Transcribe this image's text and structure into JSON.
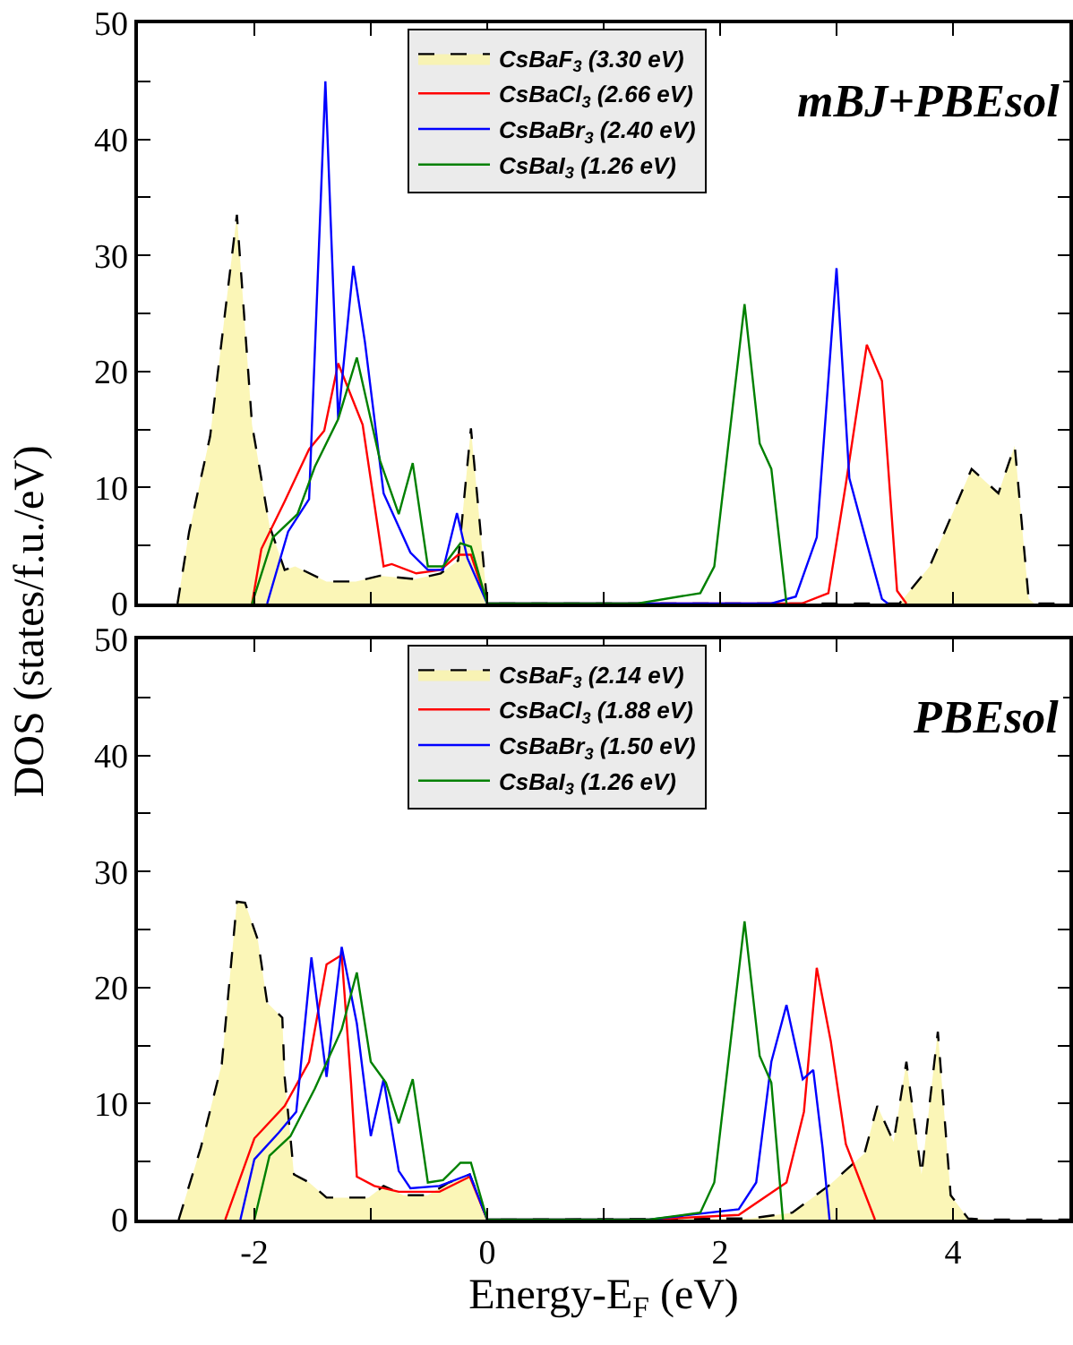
{
  "chart_data": [
    {
      "type": "line",
      "ylabel": "DOS (states/f.u./eV)",
      "annotations": [
        "mBJ+PBEsol"
      ],
      "xlim": [
        -3,
        5
      ],
      "ylim": [
        0,
        50
      ],
      "tick_labels": "y",
      "legend": "top",
      "line_style": "solid",
      "marker": "none",
      "xticks": [
        {
          "value": -2,
          "label": null
        },
        {
          "value": -1,
          "label": null
        },
        {
          "value": 0,
          "label": null
        },
        {
          "value": 1,
          "label": null
        },
        {
          "value": 2,
          "label": null
        },
        {
          "value": 3,
          "label": null
        },
        {
          "value": 4,
          "label": null
        }
      ],
      "yticks": [
        0,
        {
          "value": 5,
          "label": null
        },
        10,
        {
          "value": 15,
          "label": null
        },
        20,
        {
          "value": 25,
          "label": null
        },
        30,
        {
          "value": 35,
          "label": null
        },
        40,
        {
          "value": 45,
          "label": null
        },
        50
      ],
      "series": [
        {
          "name": "CsBaF$_{3}$ (3.30 eV)",
          "type": "area",
          "line_style": "dashed",
          "color": "#000000",
          "x": [
            -2.66,
            -2.56,
            -2.38,
            -2.15,
            -2.02,
            -1.87,
            -1.74,
            -1.65,
            -1.38,
            -1.13,
            -0.92,
            -0.62,
            -0.4,
            -0.25,
            -0.14,
            0,
            3.54,
            3.8,
            4.16,
            4.39,
            4.53,
            4.65,
            4.7,
            5
          ],
          "values": [
            0,
            6.2,
            14.4,
            33.5,
            15.4,
            6.7,
            2.9,
            3.2,
            1.9,
            1.9,
            2.4,
            2.1,
            2.6,
            3.7,
            15.1,
            0,
            0,
            3.2,
            11.6,
            9.5,
            13.6,
            0.4,
            0,
            0
          ]
        },
        {
          "name": "CsBaCl$_{3}$ (2.66 eV)",
          "color": "#ff0000",
          "x": [
            -2.02,
            -1.94,
            -1.74,
            -1.53,
            -1.4,
            -1.28,
            -1.07,
            -0.89,
            -0.82,
            -0.61,
            -0.4,
            -0.25,
            -0.14,
            0,
            2.7,
            2.93,
            3.08,
            3.26,
            3.39,
            3.52,
            3.6
          ],
          "values": [
            0,
            4.7,
            8.8,
            13.3,
            14.9,
            20.7,
            15.4,
            3.2,
            3.4,
            2.6,
            2.9,
            4.2,
            4.2,
            0,
            0,
            0.9,
            10.3,
            22.3,
            19.2,
            1.1,
            0
          ]
        },
        {
          "name": "CsBaBr$_{3}$ (2.40 eV)",
          "color": "#0000ff",
          "x": [
            -1.89,
            -1.71,
            -1.53,
            -1.39,
            -1.28,
            -1.15,
            -1.05,
            -0.89,
            -0.66,
            -0.51,
            -0.38,
            -0.26,
            -0.17,
            0,
            2.44,
            2.65,
            2.83,
            3.0,
            3.11,
            3.26,
            3.39,
            3.44
          ],
          "values": [
            0,
            6.2,
            9.0,
            45.0,
            15.9,
            29.1,
            22.5,
            9.5,
            4.4,
            2.9,
            2.9,
            7.8,
            3.9,
            0,
            0,
            0.6,
            5.7,
            28.9,
            10.8,
            5.2,
            0.4,
            0
          ]
        },
        {
          "name": "CsBaI$_{3}$ (1.26 eV)",
          "color": "#008000",
          "x": [
            -2.02,
            -1.84,
            -1.63,
            -1.48,
            -1.28,
            -1.12,
            -0.92,
            -0.76,
            -0.64,
            -0.51,
            -0.38,
            -0.23,
            -0.14,
            0,
            1.29,
            1.83,
            1.95,
            2.21,
            2.34,
            2.44,
            2.57
          ],
          "values": [
            0,
            5.7,
            7.7,
            11.8,
            15.9,
            21.2,
            12.3,
            7.7,
            12.1,
            3.2,
            3.2,
            5.2,
            4.9,
            0,
            0,
            0.9,
            3.2,
            25.8,
            13.8,
            11.6,
            0
          ]
        }
      ]
    },
    {
      "type": "line",
      "xlabel": "Energy-E$_{F}$ (eV)",
      "annotations": [
        "PBEsol"
      ],
      "xlim": [
        -3,
        5
      ],
      "ylim": [
        0,
        50
      ],
      "legend": "top",
      "line_style": "solid",
      "marker": "none",
      "xticks": [
        {
          "value": -2,
          "label": "-2"
        },
        {
          "value": -1,
          "label": null
        },
        {
          "value": 0,
          "label": "0"
        },
        {
          "value": 1,
          "label": null
        },
        {
          "value": 2,
          "label": "2"
        },
        {
          "value": 3,
          "label": null
        },
        {
          "value": 4,
          "label": "4"
        }
      ],
      "yticks": [
        0,
        {
          "value": 5,
          "label": null
        },
        10,
        {
          "value": 15,
          "label": null
        },
        20,
        {
          "value": 25,
          "label": null
        },
        30,
        {
          "value": 35,
          "label": null
        },
        40,
        {
          "value": 45,
          "label": null
        },
        50
      ],
      "series": [
        {
          "name": "CsBaF$_{3}$ (2.14 eV)",
          "type": "area",
          "line_style": "dashed",
          "color": "#000000",
          "x": [
            -2.65,
            -2.46,
            -2.28,
            -2.15,
            -2.08,
            -1.97,
            -1.89,
            -1.76,
            -1.74,
            -1.66,
            -1.53,
            -1.38,
            -1.02,
            -0.89,
            -0.72,
            -0.51,
            -0.33,
            -0.15,
            0,
            2.26,
            2.62,
            2.93,
            3.24,
            3.35,
            3.49,
            3.6,
            3.73,
            3.87,
            3.98,
            4.13,
            4.28,
            5
          ],
          "values": [
            0,
            6.2,
            13.4,
            27.4,
            27.3,
            24.1,
            18.7,
            17.4,
            12.3,
            3.9,
            3.2,
            1.9,
            1.9,
            2.9,
            2.1,
            2.1,
            3.2,
            3.9,
            0,
            0.1,
            0.6,
            2.9,
            5.7,
            9.8,
            6.7,
            13.6,
            3.9,
            16.2,
            2.1,
            0.1,
            0,
            0
          ]
        },
        {
          "name": "CsBaCl$_{3}$ (1.88 eV)",
          "color": "#ff0000",
          "x": [
            -2.25,
            -2.0,
            -1.74,
            -1.53,
            -1.38,
            -1.25,
            -1.17,
            -1.12,
            -0.97,
            -0.76,
            -0.41,
            -0.15,
            0,
            1.39,
            2.16,
            2.57,
            2.72,
            2.83,
            2.95,
            3.08,
            3.33
          ],
          "values": [
            0,
            7.0,
            9.8,
            13.6,
            22.0,
            22.8,
            11.8,
            3.7,
            2.9,
            2.4,
            2.4,
            3.7,
            0,
            0,
            0.4,
            3.2,
            9.3,
            21.7,
            15.4,
            6.5,
            0
          ]
        },
        {
          "name": "CsBaBr$_{3}$ (1.50 eV)",
          "color": "#0000ff",
          "x": [
            -2.12,
            -2.0,
            -1.79,
            -1.64,
            -1.51,
            -1.38,
            -1.25,
            -1.12,
            -1.0,
            -0.89,
            -0.76,
            -0.66,
            -0.41,
            -0.15,
            0,
            1.39,
            2.16,
            2.31,
            2.44,
            2.57,
            2.71,
            2.8,
            2.88,
            2.94
          ],
          "values": [
            0,
            5.2,
            7.5,
            9.3,
            22.6,
            12.3,
            23.5,
            16.9,
            7.2,
            12.1,
            4.2,
            2.7,
            2.9,
            3.9,
            0,
            0,
            0.9,
            3.2,
            13.6,
            18.5,
            12.1,
            12.9,
            6.2,
            0
          ]
        },
        {
          "name": "CsBaI$_{3}$ (1.26 eV)",
          "color": "#008000",
          "x": [
            -2.0,
            -1.87,
            -1.69,
            -1.48,
            -1.25,
            -1.12,
            -1.0,
            -0.87,
            -0.76,
            -0.64,
            -0.51,
            -0.38,
            -0.23,
            -0.14,
            0,
            1.39,
            1.83,
            1.95,
            2.21,
            2.34,
            2.44,
            2.54
          ],
          "values": [
            0,
            5.5,
            7.2,
            11.3,
            16.4,
            21.3,
            13.6,
            11.8,
            8.3,
            12.1,
            3.2,
            3.4,
            4.9,
            4.9,
            0,
            0,
            0.6,
            3.2,
            25.7,
            14.1,
            11.8,
            0
          ]
        }
      ]
    }
  ]
}
